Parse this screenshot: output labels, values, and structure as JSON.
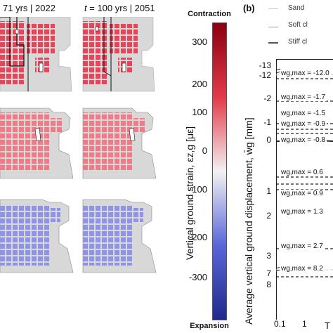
{
  "panel_a": {
    "col1_header": "71 yrs | 2022",
    "col2_header_prefix": "t",
    "col2_header_rest": " = 100 yrs | 2051",
    "row_tints": [
      "#e8455a",
      "#f07a86",
      "#8f94e6"
    ]
  },
  "colorbar": {
    "top_label": "Contraction",
    "bottom_label": "Expansion",
    "ticks": [
      "300",
      "200",
      "100",
      "0",
      "-100",
      "-200",
      "-300"
    ],
    "axis_label": "Vertical ground strain, εz,g [με]",
    "colors": {
      "top": "#8b0010",
      "mid": "#f2f2f2",
      "bottom": "#1f2a8c"
    }
  },
  "panel_b": {
    "label": "(b)",
    "legend": [
      "Sand",
      "Soft cl",
      "Stiff cl"
    ],
    "y_axis_label": "Average vertical ground displacement, w̄g [mm]",
    "y_ticks": [
      "-13",
      "-12",
      "-2",
      "-1",
      "0",
      "1",
      "2",
      "3",
      "7",
      "8"
    ],
    "x_ticks": [
      "0.1",
      "1"
    ],
    "x_label_partial": "T",
    "w_labels": [
      "wg,max = -12.0",
      "wg,max = -1.7",
      "wg,max = -1.5",
      "wg,max = -0.9",
      "wg,max = -0.8",
      "wg,max = 0.6",
      "wg,max = 0.9",
      "wg,max = 1.3",
      "wg,max = 2.7",
      "wg,max = 8.2"
    ]
  }
}
